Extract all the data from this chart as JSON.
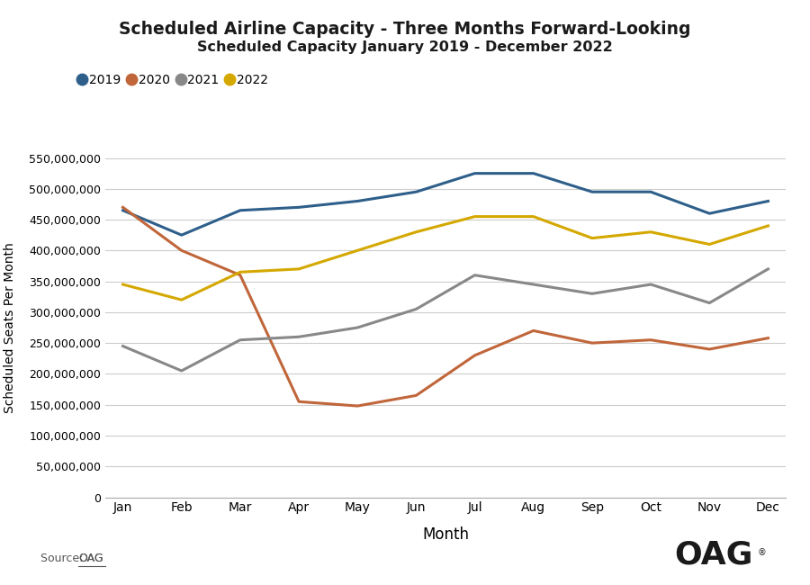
{
  "title": "Scheduled Airline Capacity - Three Months Forward-Looking",
  "subtitle": "Scheduled Capacity January 2019 - December 2022",
  "xlabel": "Month",
  "ylabel": "Scheduled Seats Per Month",
  "months": [
    "Jan",
    "Feb",
    "Mar",
    "Apr",
    "May",
    "Jun",
    "Jul",
    "Aug",
    "Sep",
    "Oct",
    "Nov",
    "Dec"
  ],
  "series": {
    "2019": [
      465000000,
      425000000,
      465000000,
      470000000,
      480000000,
      495000000,
      525000000,
      525000000,
      495000000,
      495000000,
      460000000,
      480000000
    ],
    "2020": [
      470000000,
      400000000,
      360000000,
      155000000,
      148000000,
      165000000,
      230000000,
      270000000,
      250000000,
      255000000,
      240000000,
      258000000
    ],
    "2021": [
      245000000,
      205000000,
      255000000,
      260000000,
      275000000,
      305000000,
      360000000,
      345000000,
      330000000,
      345000000,
      315000000,
      370000000
    ],
    "2022": [
      345000000,
      320000000,
      365000000,
      370000000,
      400000000,
      430000000,
      455000000,
      455000000,
      420000000,
      430000000,
      410000000,
      440000000
    ]
  },
  "colors": {
    "2019": "#2E5F8A",
    "2020": "#C0663A",
    "2021": "#888888",
    "2022": "#D4A800"
  },
  "ylim": [
    0,
    550000000
  ],
  "ytick_step": 50000000,
  "background_color": "#ffffff",
  "grid_color": "#cccccc",
  "source_text_plain": "Source: ",
  "source_text_link": "OAG",
  "oag_text": "OAG"
}
